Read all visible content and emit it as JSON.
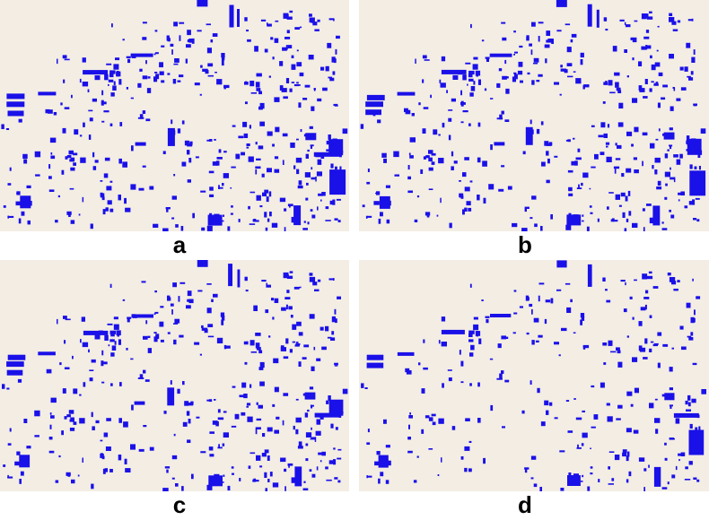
{
  "figure": {
    "background_color": "#f3ede4",
    "building_color": "#1a10e8",
    "panels": [
      {
        "label": "a",
        "density": 1.0
      },
      {
        "label": "b",
        "density": 0.95
      },
      {
        "label": "c",
        "density": 0.9
      },
      {
        "label": "d",
        "density": 0.65
      }
    ]
  }
}
